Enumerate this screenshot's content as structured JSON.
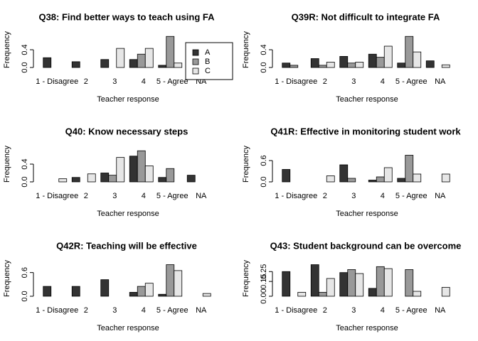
{
  "chart_data": [
    {
      "type": "bar",
      "title": "Q38: Find better ways to teach using FA",
      "x_label": "Teacher response",
      "y_label": "Frequency",
      "categories": [
        "1 - Disagree",
        "2",
        "3",
        "4",
        "5 - Agree",
        "NA"
      ],
      "series": [
        {
          "name": "A",
          "color": "#333333",
          "values": [
            0.22,
            0.13,
            0.18,
            0.18,
            0.05,
            0
          ]
        },
        {
          "name": "B",
          "color": "#999999",
          "values": [
            0,
            0,
            0,
            0.3,
            0.7,
            0
          ]
        },
        {
          "name": "C",
          "color": "#e6e6e6",
          "values": [
            0,
            0,
            0.43,
            0.43,
            0.1,
            0
          ]
        }
      ],
      "ylim": [
        0,
        0.8
      ],
      "yticks": [
        {
          "value": 0,
          "label": "0.0"
        },
        0.4
      ],
      "legend": "right"
    },
    {
      "type": "bar",
      "title": "Q39R: Not difficult to integrate FA",
      "x_label": "Teacher response",
      "y_label": "Frequency",
      "categories": [
        "1 - Disagree",
        "2",
        "3",
        "4",
        "5 - Agree",
        "NA"
      ],
      "series": [
        {
          "name": "A",
          "color": "#333333",
          "values": [
            0.1,
            0.2,
            0.25,
            0.3,
            0.1,
            0.15
          ]
        },
        {
          "name": "B",
          "color": "#999999",
          "values": [
            0.05,
            0.05,
            0.1,
            0.23,
            0.7,
            0
          ]
        },
        {
          "name": "C",
          "color": "#e6e6e6",
          "values": [
            0,
            0.12,
            0.12,
            0.48,
            0.35,
            0.06
          ]
        }
      ],
      "ylim": [
        0,
        0.8
      ],
      "yticks": [
        {
          "value": 0,
          "label": "0.0"
        },
        0.4
      ]
    },
    {
      "type": "bar",
      "title": "Q40: Know necessary steps",
      "x_label": "Teacher response",
      "y_label": "Frequency",
      "categories": [
        "1 - Disagree",
        "2",
        "3",
        "4",
        "5 - Agree",
        "NA"
      ],
      "series": [
        {
          "name": "A",
          "color": "#333333",
          "values": [
            0,
            0.1,
            0.2,
            0.58,
            0.1,
            0.15
          ]
        },
        {
          "name": "B",
          "color": "#999999",
          "values": [
            0,
            0,
            0.15,
            0.7,
            0.3,
            0
          ]
        },
        {
          "name": "C",
          "color": "#e6e6e6",
          "values": [
            0.07,
            0.18,
            0.55,
            0.36,
            0,
            0
          ]
        }
      ],
      "ylim": [
        0,
        0.8
      ],
      "yticks": [
        {
          "value": 0,
          "label": "0.0"
        },
        0.4
      ]
    },
    {
      "type": "bar",
      "title": "Q41R: Effective in monitoring student work",
      "x_label": "Teacher response",
      "y_label": "Frequency",
      "categories": [
        "1 - Disagree",
        "2",
        "3",
        "4",
        "5 - Agree",
        "NA"
      ],
      "series": [
        {
          "name": "A",
          "color": "#333333",
          "values": [
            0.35,
            0,
            0.48,
            0.05,
            0.1,
            0
          ]
        },
        {
          "name": "B",
          "color": "#999999",
          "values": [
            0,
            0,
            0.1,
            0.14,
            0.75,
            0
          ]
        },
        {
          "name": "C",
          "color": "#e6e6e6",
          "values": [
            0,
            0.17,
            0,
            0.4,
            0.22,
            0.22
          ]
        }
      ],
      "ylim": [
        0,
        1.0
      ],
      "yticks": [
        {
          "value": 0,
          "label": "0.0"
        },
        0.6
      ]
    },
    {
      "type": "bar",
      "title": "Q42R: Teaching will be effective",
      "x_label": "Teacher response",
      "y_label": "Frequency",
      "categories": [
        "1 - Disagree",
        "2",
        "3",
        "4",
        "5 - Agree",
        "NA"
      ],
      "series": [
        {
          "name": "A",
          "color": "#333333",
          "values": [
            0.25,
            0.25,
            0.42,
            0.1,
            0.05,
            0
          ]
        },
        {
          "name": "B",
          "color": "#999999",
          "values": [
            0,
            0,
            0,
            0.25,
            0.8,
            0
          ]
        },
        {
          "name": "C",
          "color": "#e6e6e6",
          "values": [
            0,
            0,
            0,
            0.33,
            0.65,
            0.07
          ]
        }
      ],
      "ylim": [
        0,
        0.9
      ],
      "yticks": [
        {
          "value": 0,
          "label": "0.0"
        },
        0.6
      ]
    },
    {
      "type": "bar",
      "title": "Q43: Student background can be overcome",
      "x_label": "Teacher response",
      "y_label": "Frequency",
      "categories": [
        "1 - Disagree",
        "2",
        "3",
        "4",
        "5 - Agree",
        "NA"
      ],
      "series": [
        {
          "name": "A",
          "color": "#333333",
          "values": [
            0.25,
            0.32,
            0.24,
            0.08,
            0,
            0
          ]
        },
        {
          "name": "B",
          "color": "#999999",
          "values": [
            0,
            0.04,
            0.27,
            0.3,
            0.27,
            0
          ]
        },
        {
          "name": "C",
          "color": "#e6e6e6",
          "values": [
            0.04,
            0.18,
            0.23,
            0.28,
            0.05,
            0.09
          ]
        }
      ],
      "ylim": [
        0,
        0.36
      ],
      "yticks": [
        {
          "value": 0,
          "label": "0.00"
        },
        0.15,
        0.25
      ]
    }
  ]
}
